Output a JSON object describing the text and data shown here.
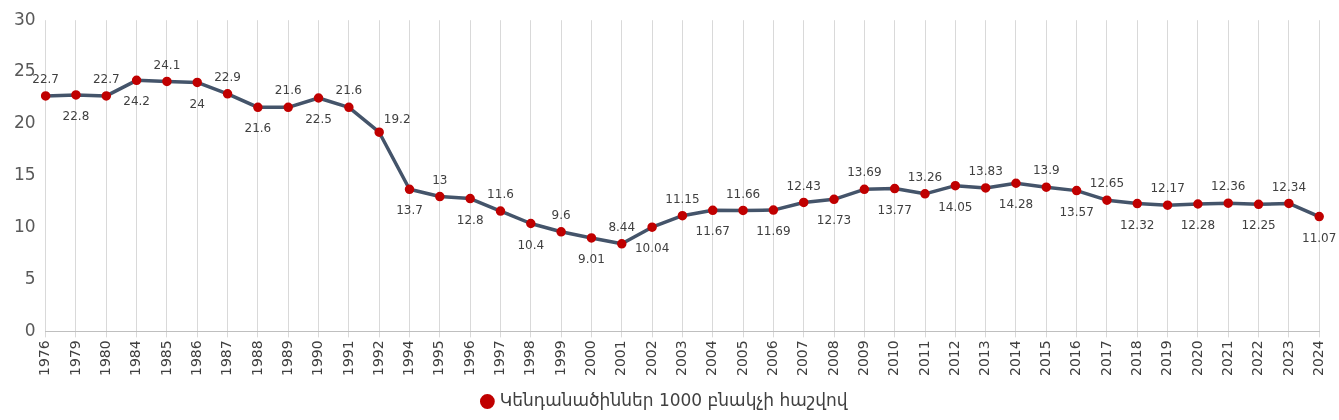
{
  "chart_data": {
    "type": "line",
    "categories": [
      "1976",
      "1979",
      "1980",
      "1984",
      "1985",
      "1986",
      "1987",
      "1988",
      "1989",
      "1990",
      "1991",
      "1992",
      "1994",
      "1995",
      "1996",
      "1997",
      "1998",
      "1999",
      "2000",
      "2001",
      "2002",
      "2003",
      "2004",
      "2005",
      "2006",
      "2007",
      "2008",
      "2009",
      "2010",
      "2011",
      "2012",
      "2013",
      "2014",
      "2015",
      "2016",
      "2017",
      "2018",
      "2019",
      "2020",
      "2021",
      "2022",
      "2023",
      "2024"
    ],
    "series": [
      {
        "name": "Կենդանածիններ 1000 բնակչի հաշվով",
        "color": "#44546a",
        "colors": [
          "#c00000",
          "#c00000",
          "#c00000",
          "#c00000",
          "#c00000",
          "#c00000",
          "#c00000",
          "#c00000",
          "#c00000",
          "#c00000",
          "#c00000",
          "#c00000",
          "#c00000",
          "#c00000",
          "#c00000",
          "#c00000",
          "#c00000",
          "#c00000",
          "#c00000",
          "#c00000",
          "#c00000",
          "#c00000",
          "#c00000",
          "#c00000",
          "#c00000",
          "#c00000",
          "#c00000",
          "#c00000",
          "#c00000",
          "#c00000",
          "#c00000",
          "#c00000",
          "#c00000",
          "#c00000",
          "#c00000",
          "#c00000",
          "#c00000",
          "#c00000",
          "#c00000",
          "#c00000",
          "#c00000",
          "#c00000",
          "#c00000"
        ],
        "values": [
          22.7,
          22.8,
          22.7,
          24.2,
          24.1,
          24,
          22.9,
          21.6,
          21.6,
          22.5,
          21.6,
          19.2,
          13.7,
          13,
          12.8,
          11.6,
          10.4,
          9.6,
          9.01,
          8.44,
          10.04,
          11.15,
          11.67,
          11.66,
          11.69,
          12.43,
          12.73,
          13.69,
          13.77,
          13.26,
          14.05,
          13.83,
          14.28,
          13.9,
          13.57,
          12.65,
          12.32,
          12.17,
          12.28,
          12.36,
          12.25,
          12.34,
          11.07
        ]
      }
    ],
    "ylim": [
      0,
      30
    ],
    "yticks": [
      0,
      5,
      10,
      15,
      20,
      25,
      30
    ],
    "grid": "x",
    "legend": "bottom",
    "marker": "circle",
    "line_style": "solid",
    "data_labels": true
  }
}
